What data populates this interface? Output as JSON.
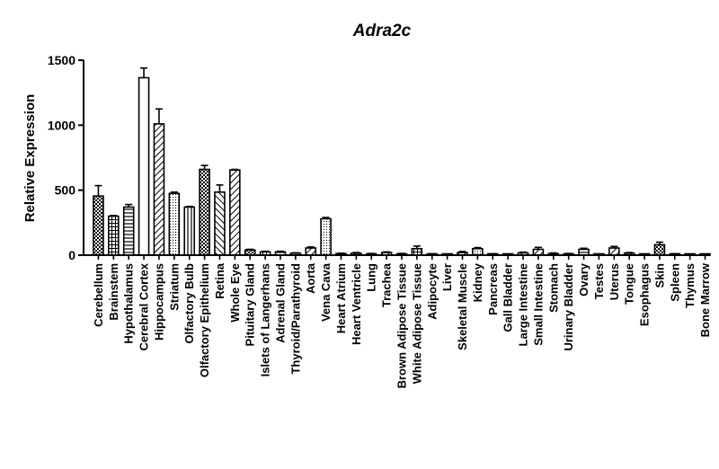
{
  "chart_data": {
    "type": "bar",
    "title": "Adra2c",
    "xlabel": "",
    "ylabel": "Relative Expression",
    "ylim": [
      0,
      1500
    ],
    "yticks": [
      0,
      500,
      1000,
      1500
    ],
    "grid": false,
    "legend": "none",
    "categories": [
      "Cerebellum",
      "Brainstem",
      "Hypothalamus",
      "Cerebral Cortex",
      "Hippocampus",
      "Striatum",
      "Olfactory Bulb",
      "Olfactory Epithelium",
      "Retina",
      "Whole Eye",
      "Pituitary Gland",
      "Islets of Langerhans",
      "Adrenal Gland",
      "Thyroid/Parathyroid",
      "Aorta",
      "Vena Cava",
      "Heart Atrium",
      "Heart Ventricle",
      "Lung",
      "Trachea",
      "Brown Adipose Tissue",
      "White Adipose Tissue",
      "Adipocyte",
      "Liver",
      "Skeletal Muscle",
      "Kidney",
      "Pancreas",
      "Gall Bladder",
      "Large Intestine",
      "Small Intestine",
      "Stomach",
      "Urinary Bladder",
      "Ovary",
      "Testes",
      "Uterus",
      "Tongue",
      "Esophagus",
      "Skin",
      "Spleen",
      "Thymus",
      "Bone Marrow"
    ],
    "series": [
      {
        "values": [
          455,
          300,
          370,
          1365,
          1010,
          475,
          370,
          660,
          485,
          655,
          40,
          25,
          25,
          15,
          55,
          280,
          12,
          15,
          10,
          20,
          10,
          50,
          8,
          5,
          20,
          50,
          8,
          5,
          18,
          45,
          12,
          10,
          45,
          5,
          55,
          15,
          5,
          80,
          8,
          3,
          3
        ],
        "errors": [
          80,
          5,
          20,
          75,
          115,
          10,
          5,
          30,
          55,
          5,
          5,
          5,
          5,
          3,
          8,
          10,
          3,
          5,
          3,
          5,
          3,
          20,
          3,
          3,
          8,
          8,
          3,
          3,
          5,
          15,
          5,
          3,
          8,
          3,
          12,
          5,
          3,
          20,
          3,
          3,
          3
        ]
      }
    ]
  }
}
